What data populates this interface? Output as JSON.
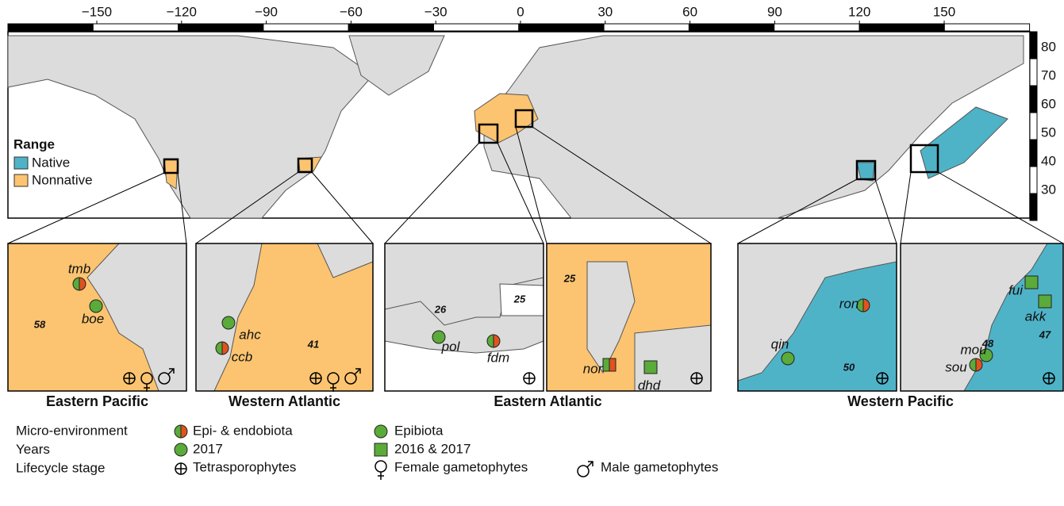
{
  "map": {
    "lon_ticks": [
      "−150",
      "−120",
      "−90",
      "−60",
      "−30",
      "0",
      "30",
      "60",
      "90",
      "120",
      "150"
    ],
    "lat_ticks": [
      "80",
      "70",
      "60",
      "50",
      "40",
      "30"
    ],
    "range_legend": {
      "title": "Range",
      "items": [
        "Native",
        "Nonnative"
      ]
    }
  },
  "regions": [
    {
      "title": "Eastern Pacific",
      "panels": [
        {
          "zones": [
            "58"
          ],
          "sites": [
            "tmb",
            "boe"
          ]
        }
      ]
    },
    {
      "title": "Western Atlantic",
      "panels": [
        {
          "zones": [
            "41"
          ],
          "sites": [
            "ahc",
            "ccb"
          ]
        }
      ]
    },
    {
      "title": "Eastern Atlantic",
      "panels": [
        {
          "zones": [
            "26",
            "25"
          ],
          "sites": [
            "pol",
            "fdm"
          ]
        },
        {
          "zones": [
            "25"
          ],
          "sites": [
            "nor",
            "dhd"
          ]
        }
      ]
    },
    {
      "title": "Western Pacific",
      "panels": [
        {
          "zones": [
            "50"
          ],
          "sites": [
            "ron",
            "qin"
          ]
        },
        {
          "zones": [
            "47",
            "48"
          ],
          "sites": [
            "fui",
            "akk",
            "mou",
            "sou"
          ]
        }
      ]
    }
  ],
  "legend": {
    "micro_environment": {
      "label": "Micro-environment",
      "items": [
        "Epi- & endobiota",
        "Epibiota"
      ]
    },
    "years": {
      "label": "Years",
      "items": [
        "2017",
        "2016 & 2017"
      ]
    },
    "lifecycle": {
      "label": "Lifecycle stage",
      "items": [
        "Tetrasporophytes",
        "Female gametophytes",
        "Male gametophytes"
      ]
    }
  }
}
